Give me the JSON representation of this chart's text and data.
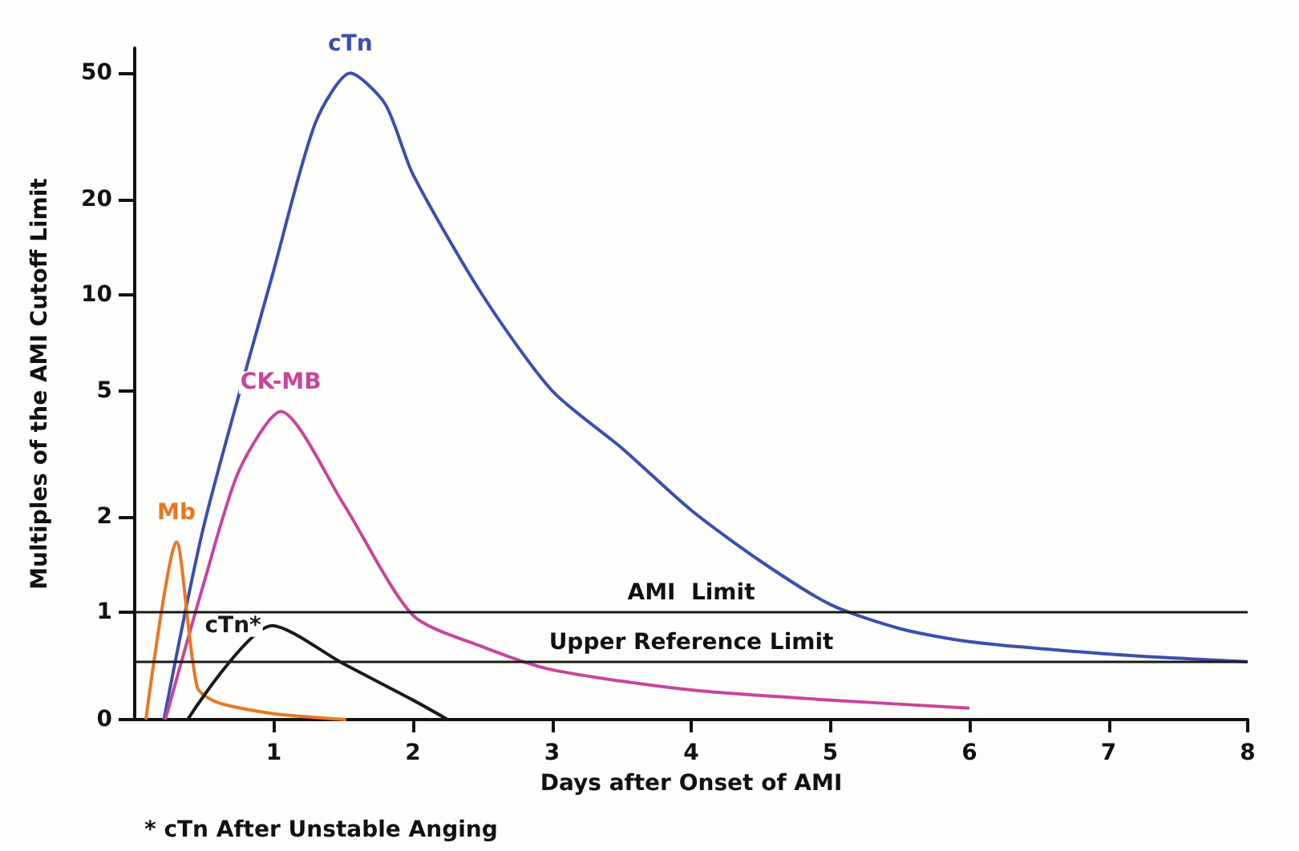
{
  "chart_data": {
    "type": "line",
    "xlabel": "Days after Onset of AMI",
    "ylabel": "Multiples of the AMI Cutoff Limit",
    "xlim": [
      0,
      8
    ],
    "xticks": [
      1,
      2,
      3,
      4,
      5,
      6,
      7,
      8
    ],
    "ylim": [
      0.46,
      60
    ],
    "yticks": [
      {
        "value": 0.46,
        "label": "0"
      },
      1,
      2,
      5,
      10,
      20,
      50
    ],
    "log": "y",
    "grid": false,
    "legend": false,
    "marker": "none",
    "line_style": "solid",
    "series": [
      {
        "name": "cTn",
        "color": "#3a4fae",
        "x": [
          0.21,
          0.5,
          1,
          1.3,
          1.55,
          1.8,
          2,
          2.5,
          3,
          3.5,
          4,
          4.5,
          5,
          5.5,
          6,
          7,
          8
        ],
        "values": [
          0.46,
          1.9,
          12,
          35,
          50,
          40,
          24,
          10,
          5,
          3.3,
          2.1,
          1.45,
          1.06,
          0.89,
          0.81,
          0.74,
          0.7
        ]
      },
      {
        "name": "CK-MB",
        "color": "#c8449c",
        "x": [
          0.22,
          0.5,
          0.75,
          1.05,
          1.5,
          2,
          2.5,
          3,
          4,
          5,
          6
        ],
        "values": [
          0.46,
          1.25,
          2.8,
          4.3,
          2.2,
          0.98,
          0.78,
          0.66,
          0.57,
          0.53,
          0.5
        ]
      },
      {
        "name": "Mb",
        "color": "#e87722",
        "x": [
          0.08,
          0.3,
          0.45,
          0.6,
          1,
          1.52
        ],
        "values": [
          0.46,
          1.67,
          0.58,
          0.52,
          0.48,
          0.46
        ]
      },
      {
        "name": "cTn*",
        "color": "#1a1a1a",
        "x": [
          0.38,
          0.99,
          1.5,
          2,
          2.25
        ],
        "values": [
          0.46,
          0.91,
          0.69,
          0.53,
          0.46
        ]
      }
    ],
    "ref_lines": [
      {
        "axis": "y",
        "value": 1,
        "label": "AMI  Limit",
        "color": "#1a1a1a"
      },
      {
        "axis": "y",
        "value": 0.7,
        "label": "Upper Reference Limit",
        "color": "#1a1a1a"
      }
    ],
    "annotations": [
      "* cTn After Unstable Anging"
    ]
  }
}
